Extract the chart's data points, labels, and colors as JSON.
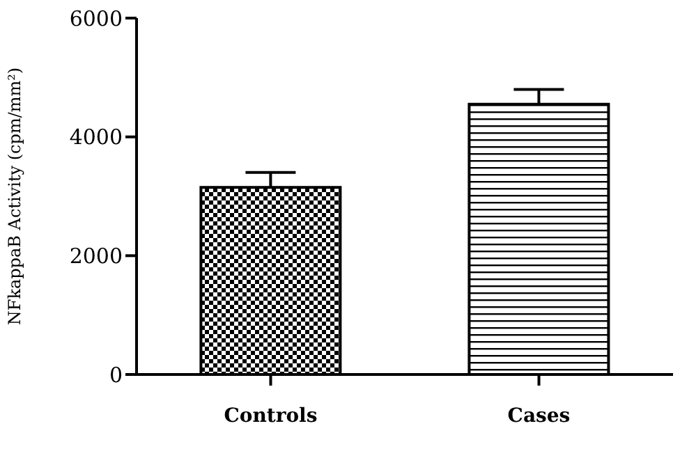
{
  "chart_data": {
    "type": "bar",
    "ylabel": "NFkappaB Activity (cpm/mm²)",
    "categories": [
      "Controls",
      "Cases"
    ],
    "values": [
      3150,
      4550
    ],
    "colors": [
      "#000000",
      "#000000"
    ],
    "errors": [
      [
        3150,
        3400
      ],
      [
        4550,
        4800
      ]
    ],
    "ylim": [
      0,
      6000
    ],
    "yticks": [
      0,
      2000,
      4000,
      6000
    ],
    "grid": false,
    "legend": false
  }
}
